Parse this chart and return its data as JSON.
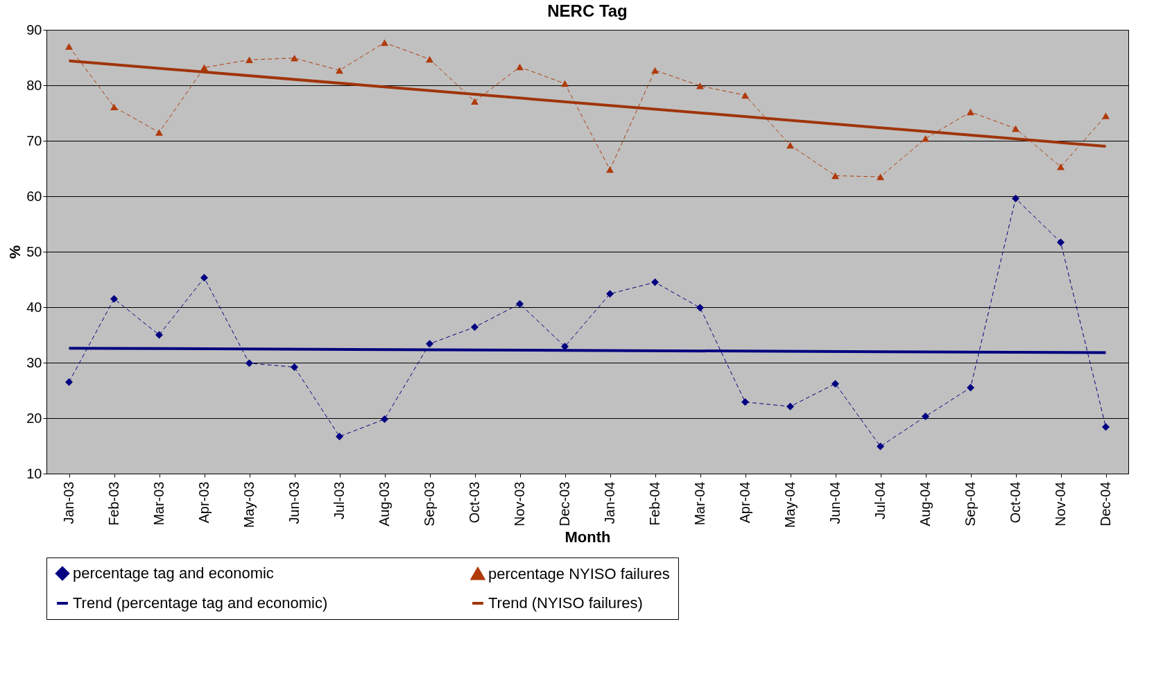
{
  "chart_data": {
    "type": "line",
    "title": "NERC Tag",
    "xlabel": "Month",
    "ylabel": "%",
    "categories": [
      "Jan-03",
      "Feb-03",
      "Mar-03",
      "Apr-03",
      "May-03",
      "Jun-03",
      "Jul-03",
      "Aug-03",
      "Sep-03",
      "Oct-03",
      "Nov-03",
      "Dec-03",
      "Jan-04",
      "Feb-04",
      "Mar-04",
      "Apr-04",
      "May-04",
      "Jun-04",
      "Jul-04",
      "Aug-04",
      "Sep-04",
      "Oct-04",
      "Nov-04",
      "Dec-04"
    ],
    "series": [
      {
        "name": "percentage tag and economic",
        "color": "#000080",
        "marker": "diamond",
        "line_style": "dashed",
        "values": [
          26.5,
          41.5,
          35,
          45.3,
          29.9,
          29.2,
          16.7,
          19.8,
          33.4,
          36.4,
          40.6,
          32.9,
          42.4,
          44.5,
          39.9,
          22.9,
          22.1,
          26.2,
          14.9,
          20.3,
          25.5,
          59.6,
          51.7,
          18.4
        ]
      },
      {
        "name": "percentage NYISO failures",
        "color": "#b03a0a",
        "marker": "triangle",
        "line_style": "dashed",
        "values": [
          87,
          76.1,
          71.5,
          83.2,
          84.6,
          84.9,
          82.7,
          87.7,
          84.7,
          77.1,
          83.3,
          80.3,
          64.8,
          82.7,
          79.9,
          78.2,
          69.2,
          63.7,
          63.5,
          70.4,
          75.2,
          72.2,
          65.3,
          74.5
        ]
      },
      {
        "name": "Trend (percentage tag and economic)",
        "color": "#000080",
        "marker": "none",
        "line_style": "solid",
        "x": [
          "Jan-03",
          "Dec-04"
        ],
        "values": [
          32.6,
          31.8
        ]
      },
      {
        "name": "Trend (NYISO failures)",
        "color": "#a0340a",
        "marker": "none",
        "line_style": "solid",
        "x": [
          "Jan-03",
          "Dec-04"
        ],
        "values": [
          84.4,
          69.0
        ]
      }
    ],
    "ylim": [
      10,
      90
    ],
    "yticks": [
      10,
      20,
      30,
      40,
      50,
      60,
      70,
      80,
      90
    ],
    "grid": "y",
    "legend": "bottom"
  }
}
